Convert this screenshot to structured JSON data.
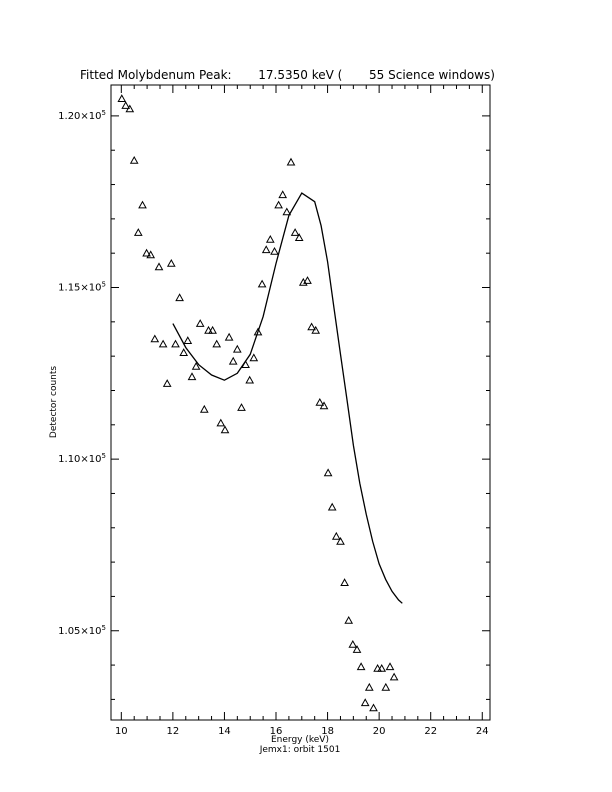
{
  "chart_data": {
    "type": "scatter",
    "title": "Fitted Molybdenum Peak:       17.5350 keV (       55 Science windows)",
    "xlabel": "Energy (keV)",
    "ylabel": "Detector counts",
    "footer": "Jemx1: orbit 1501",
    "xlim": [
      9.6,
      24.3
    ],
    "ylim": [
      102400,
      120900
    ],
    "x_ticks": [
      10,
      12,
      14,
      16,
      18,
      20,
      22,
      24
    ],
    "x_tick_labels": [
      "10",
      "12",
      "14",
      "16",
      "18",
      "20",
      "22",
      "24"
    ],
    "y_ticks": [
      105000,
      110000,
      115000,
      120000
    ],
    "y_tick_labels": [
      {
        "mantissa": "1.05×10",
        "exp": "5"
      },
      {
        "mantissa": "1.10×10",
        "exp": "5"
      },
      {
        "mantissa": "1.15×10",
        "exp": "5"
      },
      {
        "mantissa": "1.20×10",
        "exp": "5"
      }
    ],
    "grid": false,
    "series": [
      {
        "marker": "triangle",
        "points": [
          [
            10.02,
            120500
          ],
          [
            10.17,
            120300
          ],
          [
            10.33,
            120200
          ],
          [
            10.5,
            118700
          ],
          [
            10.66,
            116600
          ],
          [
            10.82,
            117400
          ],
          [
            10.98,
            116000
          ],
          [
            11.14,
            115950
          ],
          [
            11.3,
            113500
          ],
          [
            11.46,
            115600
          ],
          [
            11.62,
            113350
          ],
          [
            11.78,
            112200
          ],
          [
            11.94,
            115700
          ],
          [
            12.1,
            113350
          ],
          [
            12.26,
            114700
          ],
          [
            12.42,
            113100
          ],
          [
            12.58,
            113450
          ],
          [
            12.74,
            112400
          ],
          [
            12.9,
            112700
          ],
          [
            13.06,
            113950
          ],
          [
            13.22,
            111450
          ],
          [
            13.38,
            113750
          ],
          [
            13.54,
            113750
          ],
          [
            13.7,
            113350
          ],
          [
            13.86,
            111050
          ],
          [
            14.02,
            110850
          ],
          [
            14.18,
            113550
          ],
          [
            14.34,
            112850
          ],
          [
            14.5,
            113200
          ],
          [
            14.66,
            111500
          ],
          [
            14.82,
            112750
          ],
          [
            14.98,
            112300
          ],
          [
            15.14,
            112950
          ],
          [
            15.3,
            113700
          ],
          [
            15.46,
            115100
          ],
          [
            15.62,
            116100
          ],
          [
            15.78,
            116400
          ],
          [
            15.94,
            116050
          ],
          [
            16.1,
            117400
          ],
          [
            16.26,
            117700
          ],
          [
            16.42,
            117200
          ],
          [
            16.58,
            118650
          ],
          [
            16.74,
            116600
          ],
          [
            16.9,
            116450
          ],
          [
            17.06,
            115150
          ],
          [
            17.22,
            115200
          ],
          [
            17.38,
            113850
          ],
          [
            17.54,
            113750
          ],
          [
            17.7,
            111650
          ],
          [
            17.86,
            111550
          ],
          [
            18.02,
            109600
          ],
          [
            18.18,
            108600
          ],
          [
            18.34,
            107750
          ],
          [
            18.5,
            107600
          ],
          [
            18.66,
            106400
          ],
          [
            18.82,
            105300
          ],
          [
            18.98,
            104600
          ],
          [
            19.14,
            104450
          ],
          [
            19.3,
            103950
          ],
          [
            19.46,
            102900
          ],
          [
            19.62,
            103350
          ],
          [
            19.78,
            102750
          ],
          [
            19.94,
            103900
          ],
          [
            20.1,
            103900
          ],
          [
            20.26,
            103350
          ],
          [
            20.42,
            103950
          ],
          [
            20.58,
            103650
          ]
        ]
      },
      {
        "name": "fit",
        "marker": "line",
        "points": [
          [
            12.0,
            113950
          ],
          [
            12.5,
            113250
          ],
          [
            13.0,
            112750
          ],
          [
            13.5,
            112450
          ],
          [
            14.0,
            112300
          ],
          [
            14.5,
            112500
          ],
          [
            15.0,
            113050
          ],
          [
            15.5,
            114150
          ],
          [
            16.0,
            115700
          ],
          [
            16.5,
            117100
          ],
          [
            17.0,
            117750
          ],
          [
            17.5,
            117500
          ],
          [
            17.75,
            116800
          ],
          [
            18.0,
            115750
          ],
          [
            18.25,
            114400
          ],
          [
            18.5,
            113050
          ],
          [
            18.75,
            111750
          ],
          [
            19.0,
            110400
          ],
          [
            19.25,
            109300
          ],
          [
            19.5,
            108400
          ],
          [
            19.75,
            107600
          ],
          [
            20.0,
            106950
          ],
          [
            20.25,
            106500
          ],
          [
            20.5,
            106150
          ],
          [
            20.75,
            105900
          ],
          [
            20.9,
            105800
          ]
        ]
      }
    ]
  }
}
